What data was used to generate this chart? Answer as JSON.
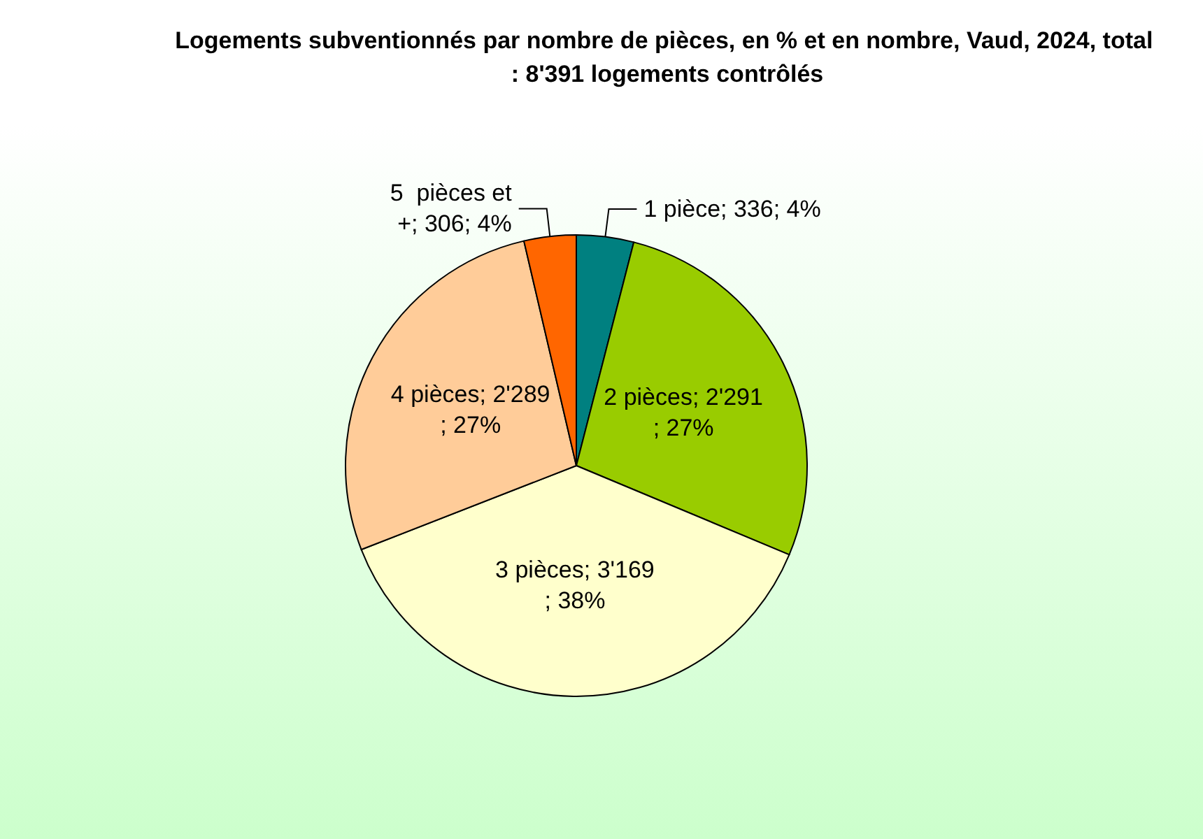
{
  "chart_data": {
    "type": "pie",
    "title": "Logements subventionnés par nombre de pièces, en % et en nombre, Vaud, 2024, total : 8'391 logements contrôlés",
    "categories": [
      "1 pièce",
      "2 pièces",
      "3 pièces",
      "4 pièces",
      "5  pièces et +"
    ],
    "values": [
      336,
      2291,
      3169,
      2289,
      306
    ],
    "value_labels": [
      "336; 4%",
      "2'291; 27%",
      "3'169; 38%",
      "2'289; 27%",
      "306; 4%"
    ],
    "colors": [
      "#008080",
      "#99cc00",
      "#ffffcc",
      "#ffcc99",
      "#ff6600"
    ],
    "legend": false
  }
}
